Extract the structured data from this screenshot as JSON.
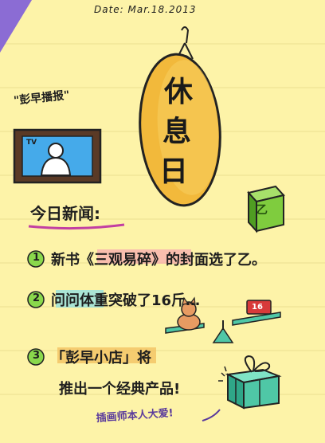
{
  "date": "Date: Mar.18.2013",
  "corner_color": "#8b6cd4",
  "tag_title": "\"彭早播报\"",
  "tv": {
    "label": "TV"
  },
  "sign": {
    "chars": [
      "休",
      "息",
      "日"
    ]
  },
  "news_heading": "今日新闻:",
  "items": [
    {
      "num": "1",
      "text": "新书《三观易碎》的封面选了乙。"
    },
    {
      "num": "2",
      "text": "问问体重突破了16斤…"
    },
    {
      "num": "3",
      "text": "「彭早小店」将",
      "text2": "推出一个经典产品!"
    }
  ],
  "box_label": "乙",
  "scale_label": "16",
  "credit": "插画师本人大爱!",
  "colors": {
    "sign_fill": "#f2b93b",
    "tv_screen": "#45aaea",
    "box_green": "#7fcc3e",
    "gift": "#4fc7a6",
    "pink": "#f6a7b0",
    "purple_accent": "#c23fa2"
  }
}
